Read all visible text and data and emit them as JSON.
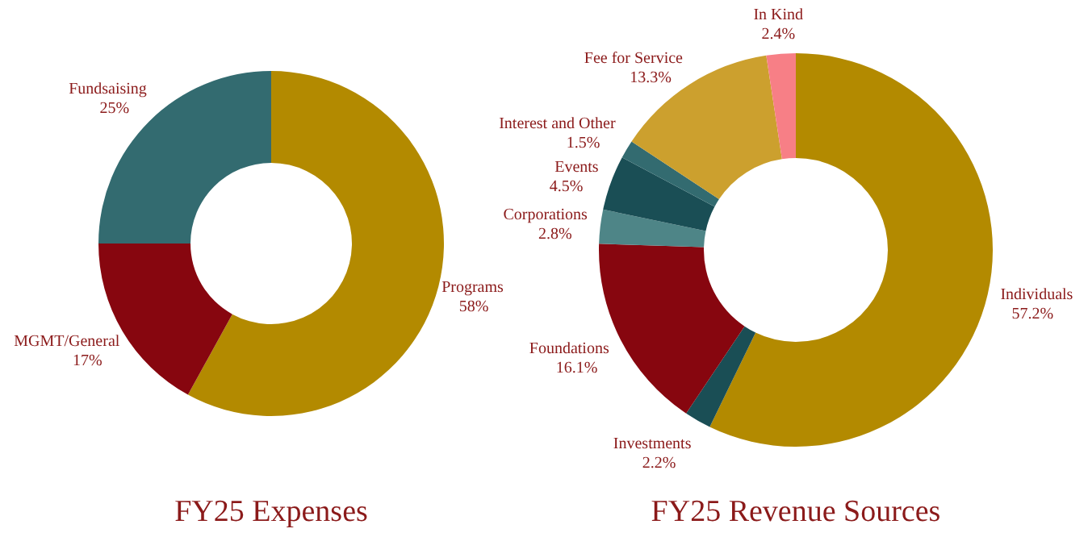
{
  "chart_data": [
    {
      "type": "donut",
      "title": "FY25 Expenses",
      "categories": [
        "Programs",
        "MGMT/General",
        "Fundsaising"
      ],
      "values": [
        58,
        17,
        25
      ],
      "colors": [
        "#b38a00",
        "#87060f",
        "#336b70"
      ],
      "value_labels": [
        "58%",
        "17%",
        "25%"
      ]
    },
    {
      "type": "donut",
      "title": "FY25 Revenue Sources",
      "categories": [
        "Individuals",
        "Investments",
        "Foundations",
        "Corporations",
        "Events",
        "Interest and Other",
        "Fee for Service",
        "In Kind"
      ],
      "values": [
        57.2,
        2.2,
        16.1,
        2.8,
        4.5,
        1.5,
        13.3,
        2.4
      ],
      "colors": [
        "#b38a00",
        "#1a4e55",
        "#87060f",
        "#4e8587",
        "#1a4e55",
        "#336b70",
        "#cca02e",
        "#f77f86"
      ],
      "value_labels": [
        "57.2%",
        "2.2%",
        "16.1%",
        "2.8%",
        "4.5%",
        "1.5%",
        "13.3%",
        "2.4%"
      ]
    }
  ]
}
